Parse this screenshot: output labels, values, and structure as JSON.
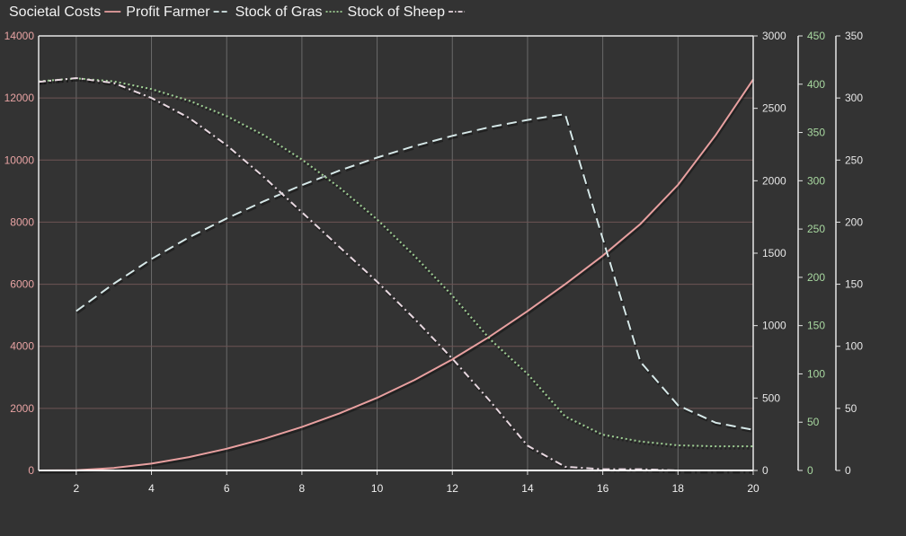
{
  "chart_data": {
    "type": "line",
    "title": "",
    "xlabel": "",
    "x": [
      1,
      2,
      3,
      4,
      5,
      6,
      7,
      8,
      9,
      10,
      11,
      12,
      13,
      14,
      15,
      16,
      17,
      18,
      19,
      20
    ],
    "xlim": [
      1,
      20
    ],
    "xticks": [
      "2",
      "4",
      "6",
      "8",
      "10",
      "12",
      "14",
      "16",
      "18",
      "20"
    ],
    "grid": true,
    "legend_position": "top-left",
    "axes": [
      {
        "id": "y1",
        "side": "left",
        "range": [
          0,
          14000
        ],
        "ticks": [
          "0",
          "2000",
          "4000",
          "6000",
          "8000",
          "10000",
          "12000",
          "14000"
        ],
        "color": "#e8a3a3"
      },
      {
        "id": "y2",
        "side": "right",
        "range": [
          0,
          3000
        ],
        "ticks": [
          "0",
          "500",
          "1000",
          "1500",
          "2000",
          "2500",
          "3000"
        ],
        "color": "#e6e6e6"
      },
      {
        "id": "y3",
        "side": "right",
        "range": [
          0,
          450
        ],
        "ticks": [
          "0",
          "50",
          "100",
          "150",
          "200",
          "250",
          "300",
          "350",
          "400",
          "450"
        ],
        "color": "#a8d8a0"
      },
      {
        "id": "y4",
        "side": "right",
        "range": [
          0,
          350
        ],
        "ticks": [
          "0",
          "50",
          "100",
          "150",
          "200",
          "250",
          "300",
          "350"
        ],
        "color": "#e6e6e6"
      }
    ],
    "series": [
      {
        "name": "Societal Costs",
        "axis": "y1",
        "color": "#e8a0a0",
        "dash": "solid",
        "values": [
          0,
          10,
          80,
          220,
          430,
          700,
          1020,
          1400,
          1840,
          2340,
          2920,
          3580,
          4320,
          5130,
          6000,
          6920,
          7940,
          9200,
          10800,
          12600
        ]
      },
      {
        "name": "Profit Farmer",
        "axis": "y2",
        "color": "#d6e8e8",
        "dash": "dashed",
        "values": [
          null,
          1100,
          1290,
          1460,
          1610,
          1740,
          1860,
          1970,
          2070,
          2160,
          2240,
          2310,
          2370,
          2420,
          2460,
          1600,
          750,
          450,
          330,
          280
        ]
      },
      {
        "name": "Stock of Gras",
        "axis": "y3",
        "color": "#9fcf94",
        "dash": "dotted",
        "values": [
          403,
          406,
          403,
          395,
          383,
          367,
          347,
          322,
          293,
          260,
          222,
          181,
          136,
          100,
          56,
          37,
          30,
          26,
          25,
          25
        ]
      },
      {
        "name": "Stock of Sheep",
        "axis": "y4",
        "color": "#e8d8e0",
        "dash": "dashdot",
        "values": [
          313,
          316,
          312,
          300,
          284,
          262,
          236,
          208,
          180,
          152,
          122,
          90,
          56,
          20,
          3,
          1,
          1,
          0,
          0,
          0
        ]
      }
    ]
  }
}
